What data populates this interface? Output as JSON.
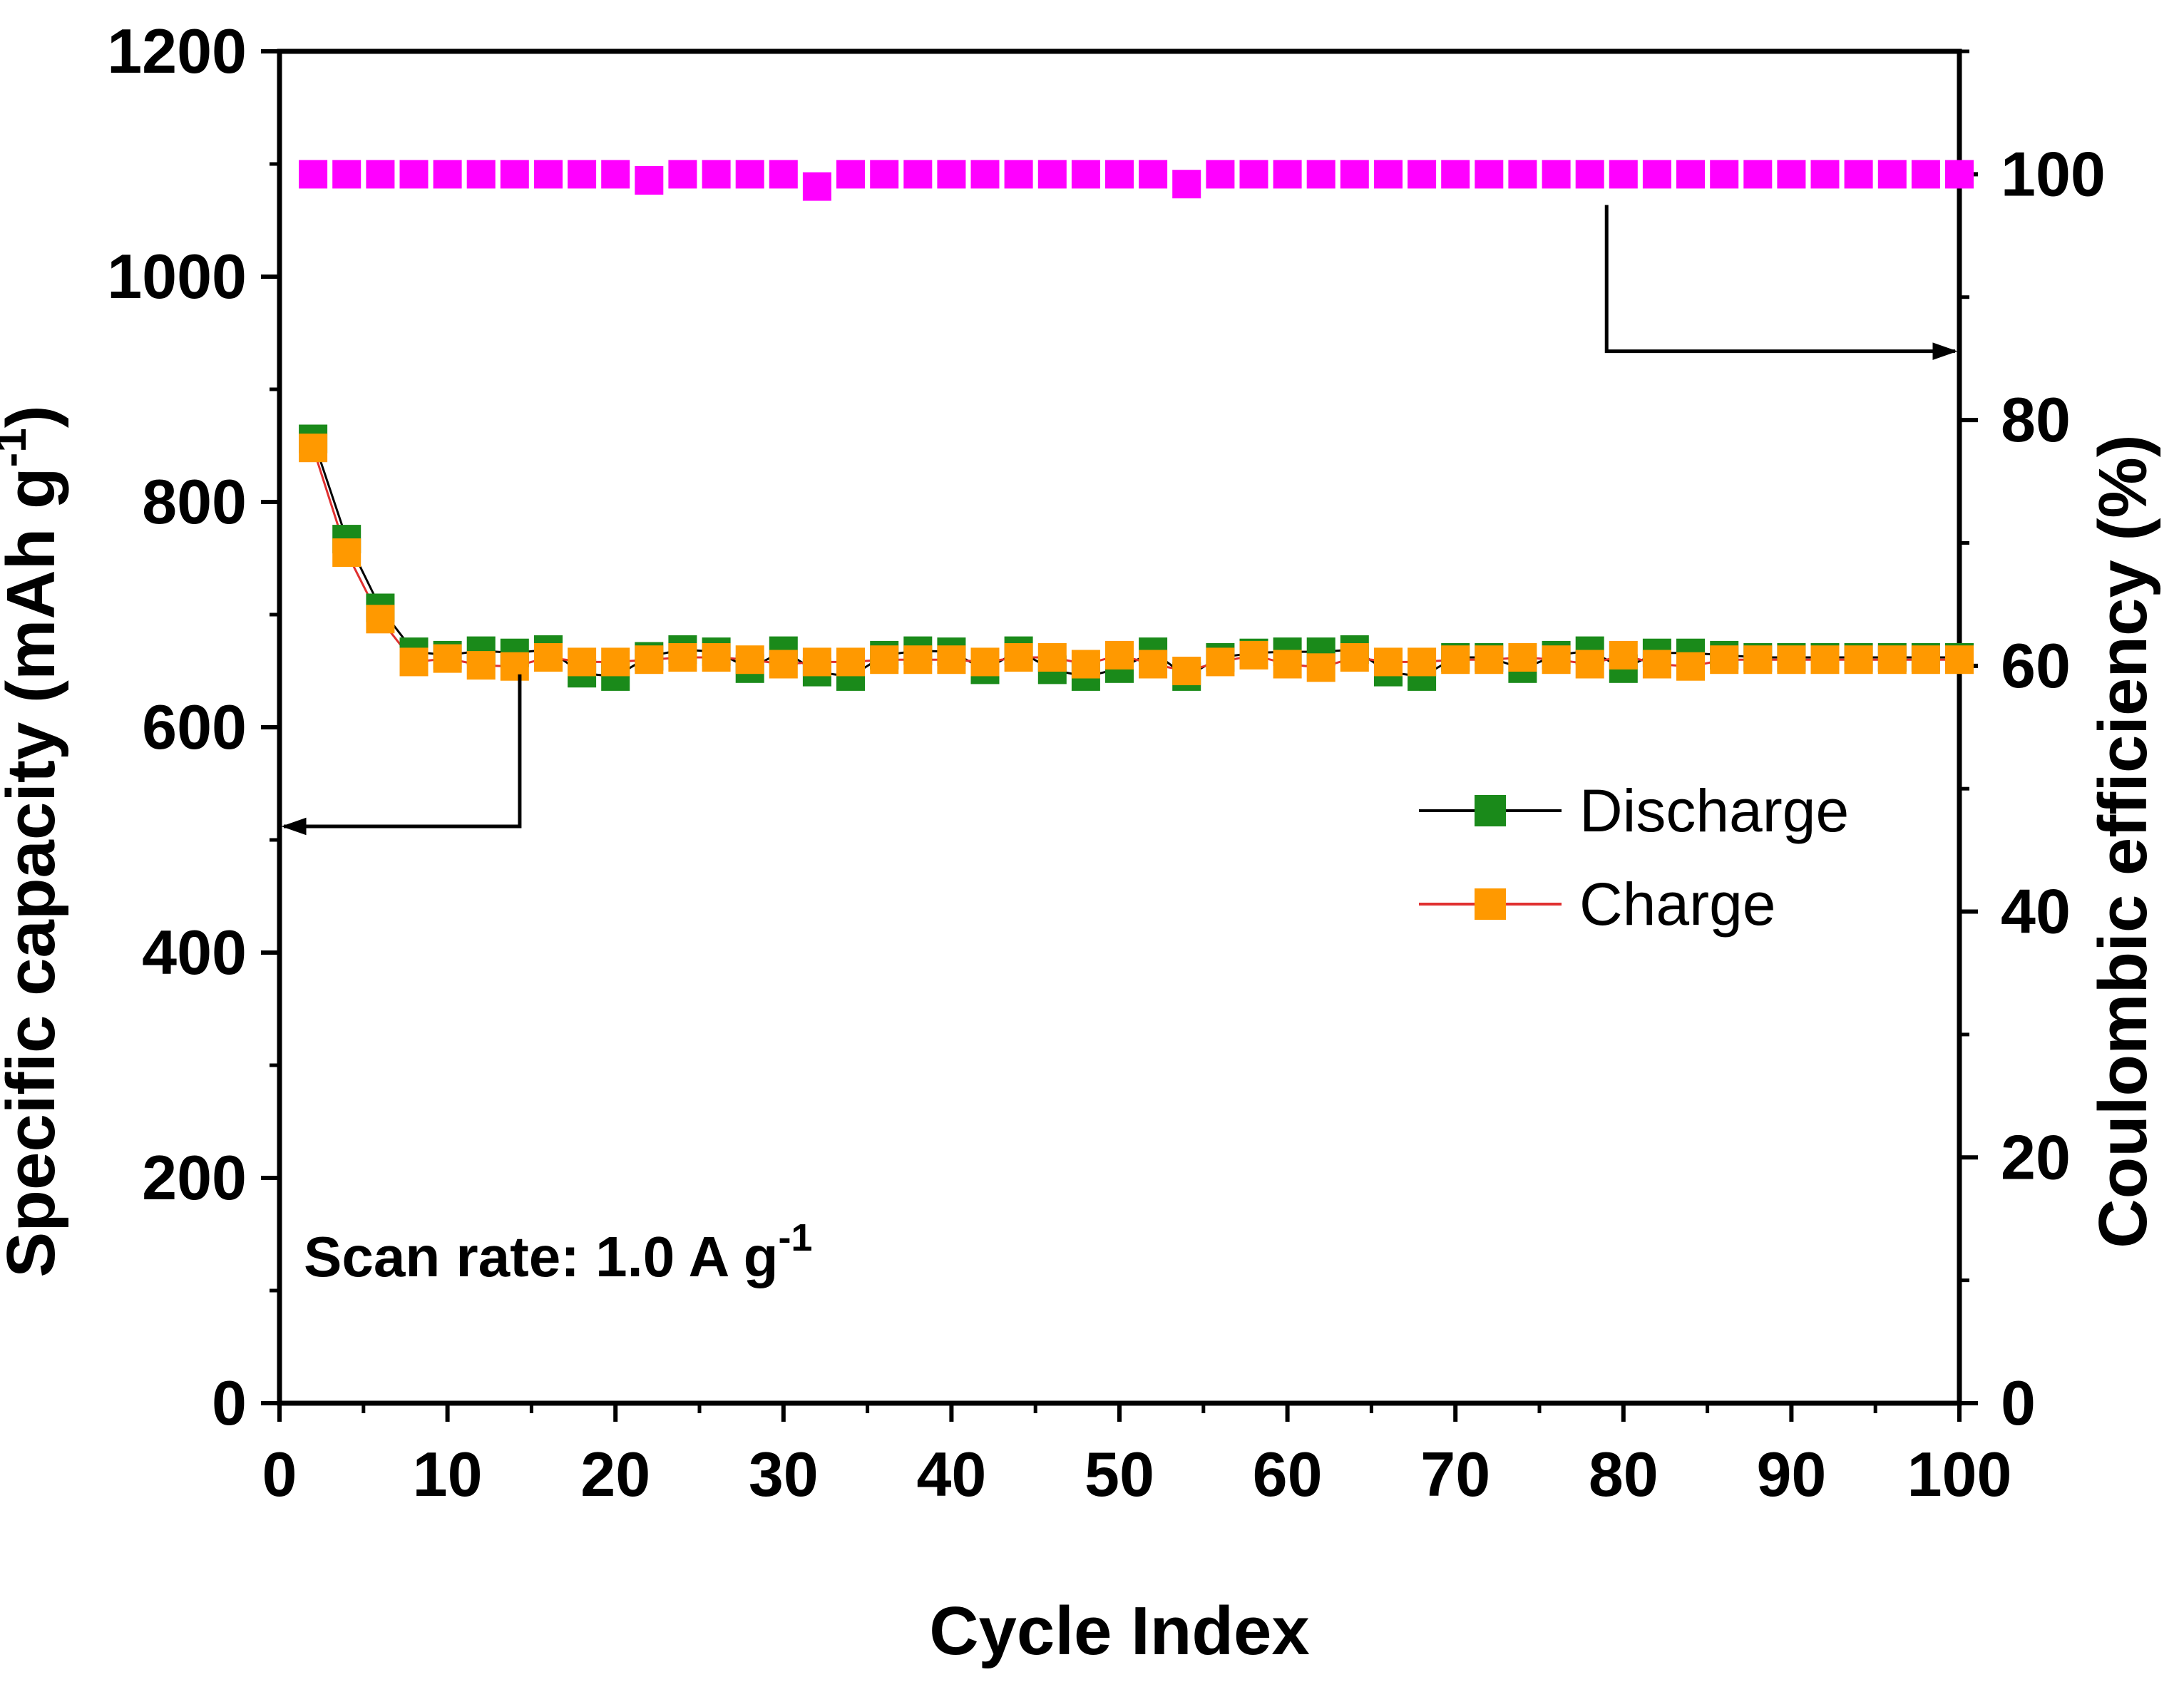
{
  "chart_data": {
    "type": "scatter",
    "xlabel": "Cycle Index",
    "ylabel_left": "Specific capacity (mAh g",
    "ylabel_left_sup": "-1",
    "ylabel_left_end": ")",
    "ylabel_right": "Coulombic efficiency (%)",
    "annotation_text": "Scan rate: 1.0 A g",
    "annotation_sup": "-1",
    "xlim": [
      0,
      100
    ],
    "ylim_left": [
      0,
      1200
    ],
    "ylim_right": [
      0,
      110
    ],
    "x_ticks": [
      0,
      10,
      20,
      30,
      40,
      50,
      60,
      70,
      80,
      90,
      100
    ],
    "y_left_ticks": [
      0,
      200,
      400,
      600,
      800,
      1000,
      1200
    ],
    "y_right_ticks": [
      0,
      20,
      40,
      60,
      80,
      100
    ],
    "x": [
      2,
      4,
      6,
      8,
      10,
      12,
      14,
      16,
      18,
      20,
      22,
      24,
      26,
      28,
      30,
      32,
      34,
      36,
      38,
      40,
      42,
      44,
      46,
      48,
      50,
      52,
      54,
      56,
      58,
      60,
      62,
      64,
      66,
      68,
      70,
      72,
      74,
      76,
      78,
      80,
      82,
      84,
      86,
      88,
      90,
      92,
      94,
      96,
      98,
      100
    ],
    "series": [
      {
        "name": "Discharge",
        "axis": "left",
        "color": "#1a8a1a",
        "line_color": "#000000",
        "values": [
          856,
          767,
          706,
          667,
          664,
          668,
          666,
          669,
          648,
          645,
          663,
          669,
          667,
          652,
          668,
          649,
          645,
          664,
          668,
          667,
          651,
          668,
          651,
          645,
          652,
          667,
          645,
          662,
          666,
          667,
          667,
          669,
          649,
          645,
          662,
          662,
          652,
          664,
          668,
          652,
          666,
          666,
          664,
          662,
          662,
          662,
          662,
          662,
          662,
          662
        ]
      },
      {
        "name": "Charge",
        "axis": "left",
        "color": "#ff9900",
        "line_color": "#e03030",
        "values": [
          848,
          755,
          696,
          658,
          661,
          655,
          654,
          662,
          658,
          658,
          660,
          662,
          662,
          660,
          656,
          658,
          658,
          660,
          660,
          660,
          658,
          662,
          662,
          656,
          664,
          656,
          650,
          658,
          664,
          656,
          653,
          662,
          658,
          658,
          660,
          660,
          662,
          660,
          656,
          664,
          656,
          654,
          660,
          660,
          660,
          660,
          660,
          660,
          660,
          660
        ]
      },
      {
        "name": "Coulombic efficiency",
        "axis": "right",
        "color": "#ff00ff",
        "values": [
          100,
          100,
          100,
          100,
          100,
          100,
          100,
          100,
          100,
          100,
          99.5,
          100,
          100,
          100,
          100,
          99,
          100,
          100,
          100,
          100,
          100,
          100,
          100,
          100,
          100,
          100,
          99.2,
          100,
          100,
          100,
          100,
          100,
          100,
          100,
          100,
          100,
          100,
          100,
          100,
          100,
          100,
          100,
          100,
          100,
          100,
          100,
          100,
          100,
          100,
          100
        ]
      }
    ],
    "legend": {
      "placement": "center-right",
      "entries": [
        "Discharge",
        "Charge"
      ]
    },
    "grid": false
  }
}
